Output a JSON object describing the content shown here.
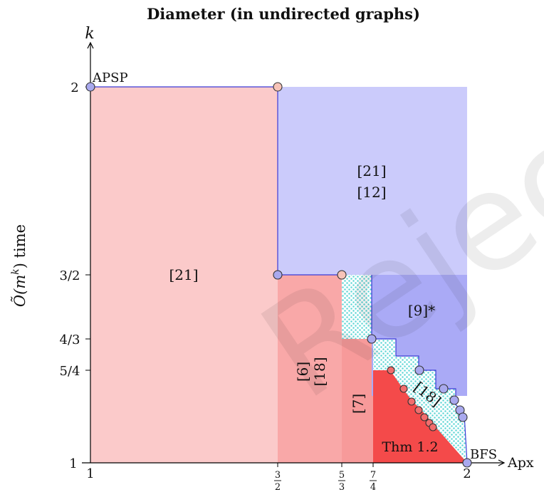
{
  "title": "Diameter (in undirected graphs)",
  "axes": {
    "x_label": "Apx",
    "y_label_math": "Õ(m",
    "y_label_exp": "k",
    "y_label_rest": ") time",
    "y_var": "k"
  },
  "ticks": {
    "x": [
      {
        "type": "int",
        "text": "1"
      },
      {
        "type": "frac",
        "num": "3",
        "den": "2"
      },
      {
        "type": "frac",
        "num": "5",
        "den": "3"
      },
      {
        "type": "frac",
        "num": "7",
        "den": "4"
      },
      {
        "type": "int",
        "text": "2"
      }
    ],
    "y": [
      "2",
      "3/2",
      "4/3",
      "5/4",
      "1"
    ]
  },
  "labels": {
    "apsp": "APSP",
    "bfs": "BFS",
    "ref21_upper": "[21]",
    "ref12": "[12]",
    "ref21_left": "[21]",
    "ref9": "[9]*",
    "ref6": "[6]",
    "ref18_vertical": "[18]",
    "ref7": "[7]",
    "ref18_diag": "[18]",
    "thm": "Thm 1.2"
  },
  "colors": {
    "light_pink": "#fbcaca",
    "mid_pink": "#f9a8a8",
    "mid2_pink": "#f79a9a",
    "bright_red": "#f44a4a",
    "light_blue": "#cbcbfb",
    "mid_blue": "#aaaaf6",
    "cyan_dots": "#5fd6d6",
    "circle_blue": "#a9a9ee",
    "circle_red": "#f26d6d",
    "circle_pink": "#f7c3b8"
  },
  "watermark": "Rejected"
}
